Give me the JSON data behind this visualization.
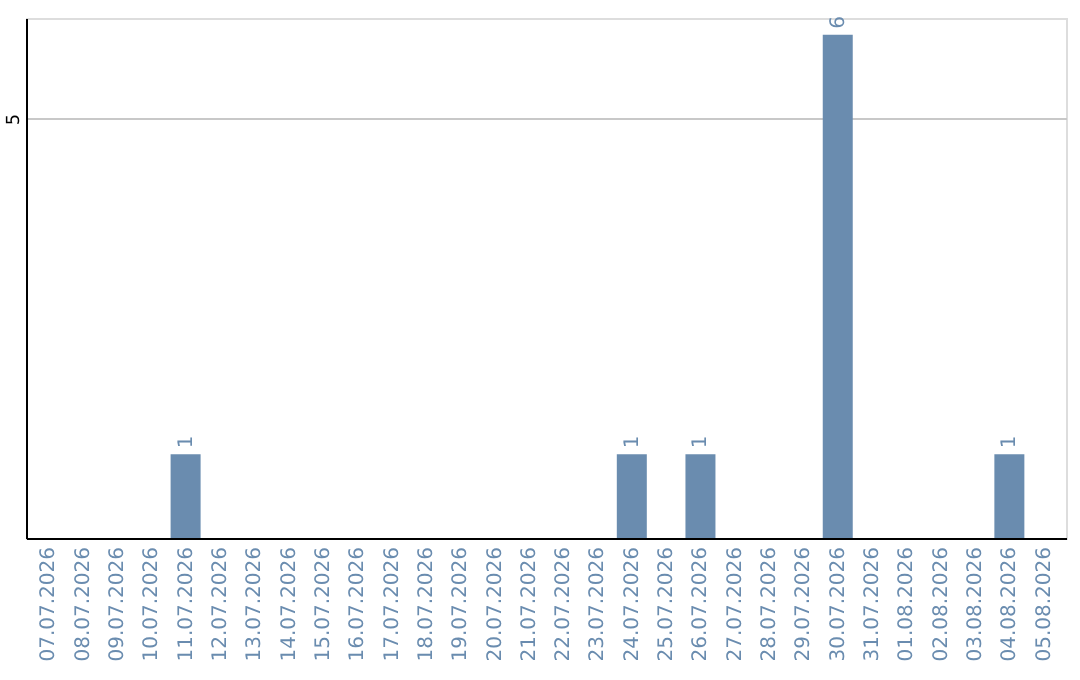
{
  "chart_data": {
    "type": "bar",
    "categories": [
      "07.07.2026",
      "08.07.2026",
      "09.07.2026",
      "10.07.2026",
      "11.07.2026",
      "12.07.2026",
      "13.07.2026",
      "14.07.2026",
      "15.07.2026",
      "16.07.2026",
      "17.07.2026",
      "18.07.2026",
      "19.07.2026",
      "20.07.2026",
      "21.07.2026",
      "22.07.2026",
      "23.07.2026",
      "24.07.2026",
      "25.07.2026",
      "26.07.2026",
      "27.07.2026",
      "28.07.2026",
      "29.07.2026",
      "30.07.2026",
      "31.07.2026",
      "01.08.2026",
      "02.08.2026",
      "03.08.2026",
      "04.08.2026",
      "05.08.2026"
    ],
    "values": [
      0,
      0,
      0,
      0,
      1,
      0,
      0,
      0,
      0,
      0,
      0,
      0,
      0,
      0,
      0,
      0,
      0,
      1,
      0,
      1,
      0,
      0,
      0,
      6,
      0,
      0,
      0,
      0,
      1,
      0
    ],
    "value_labels": [
      null,
      null,
      null,
      null,
      "1",
      null,
      null,
      null,
      null,
      null,
      null,
      null,
      null,
      null,
      null,
      null,
      null,
      "1",
      null,
      "1",
      null,
      null,
      null,
      "6",
      null,
      null,
      null,
      null,
      "1",
      null
    ],
    "color": "#6a8caf",
    "ylim": [
      0,
      6.2
    ],
    "yticks": [
      5
    ],
    "grid": "y"
  }
}
